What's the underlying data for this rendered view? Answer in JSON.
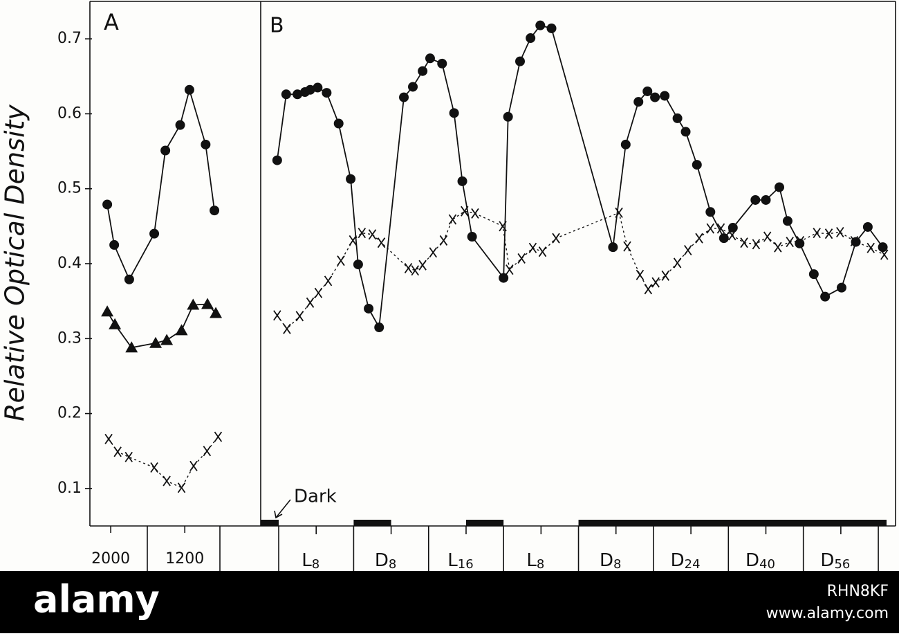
{
  "chart_data": [
    {
      "type": "line",
      "panel_label": "A",
      "ylabel": "Relative Optical Density",
      "ylim": [
        0.05,
        0.75
      ],
      "yticks": [
        0.1,
        0.2,
        0.3,
        0.4,
        0.5,
        0.6,
        0.7
      ],
      "xlim": [
        -4.5,
        32.4
      ],
      "xticks": [
        {
          "value": 0,
          "label": "2000"
        },
        {
          "value": 16,
          "label": "1200"
        }
      ],
      "series": [
        {
          "color": "#111111",
          "marker": "circle",
          "dashed": false,
          "x": [
            -0.75,
            0.75,
            4.0,
            9.4,
            11.8,
            15.0,
            17.0,
            20.5,
            22.4
          ],
          "values": [
            0.479,
            0.425,
            0.379,
            0.44,
            0.551,
            0.585,
            0.632,
            0.559,
            0.471
          ]
        },
        {
          "color": "#111111",
          "marker": "triangle",
          "dashed": false,
          "x": [
            -0.75,
            0.9,
            4.5,
            9.7,
            12.1,
            15.3,
            17.8,
            20.9,
            22.7
          ],
          "values": [
            0.336,
            0.319,
            0.288,
            0.294,
            0.298,
            0.311,
            0.345,
            0.346,
            0.334
          ]
        },
        {
          "color": "#111111",
          "marker": "x",
          "dashed": true,
          "x": [
            -0.45,
            1.5,
            3.9,
            9.4,
            12.1,
            15.3,
            17.9,
            20.8,
            23.2
          ],
          "values": [
            0.166,
            0.149,
            0.142,
            0.128,
            0.11,
            0.101,
            0.13,
            0.15,
            0.169
          ]
        }
      ]
    },
    {
      "type": "line",
      "panel_label": "B",
      "annotation": "Dark",
      "ylim": [
        0.05,
        0.75
      ],
      "xlim": [
        -0.24,
        8.23
      ],
      "categories": [
        {
          "main": "L",
          "sub": "8"
        },
        {
          "main": "D",
          "sub": "8"
        },
        {
          "main": "L",
          "sub": "16"
        },
        {
          "main": "L",
          "sub": "8"
        },
        {
          "main": "D",
          "sub": "8"
        },
        {
          "main": "D",
          "sub": "24"
        },
        {
          "main": "D",
          "sub": "40"
        },
        {
          "main": "D",
          "sub": "56"
        }
      ],
      "dark_periods": [
        [
          -0.24,
          0
        ],
        [
          1.0,
          1.5
        ],
        [
          2.5,
          3.0
        ],
        [
          4.0,
          8.11
        ]
      ],
      "series": [
        {
          "color": "#111111",
          "marker": "circle",
          "dashed": false,
          "x": [
            -0.02,
            0.1,
            0.25,
            0.35,
            0.42,
            0.52,
            0.64,
            0.8,
            0.96,
            1.06,
            1.2,
            1.34,
            1.67,
            1.79,
            1.92,
            2.02,
            2.18,
            2.34,
            2.45,
            2.58,
            3.0,
            3.06,
            3.22,
            3.36,
            3.49,
            3.64,
            4.46,
            4.63,
            4.8,
            4.92,
            5.02,
            5.15,
            5.32,
            5.43,
            5.58,
            5.76,
            5.94,
            6.06,
            6.36,
            6.5,
            6.68,
            6.79,
            6.95,
            7.14,
            7.29,
            7.51,
            7.7,
            7.86,
            8.06
          ],
          "values": [
            0.538,
            0.626,
            0.626,
            0.629,
            0.632,
            0.635,
            0.628,
            0.587,
            0.513,
            0.399,
            0.34,
            0.315,
            0.622,
            0.636,
            0.657,
            0.674,
            0.667,
            0.601,
            0.51,
            0.436,
            0.381,
            0.596,
            0.67,
            0.701,
            0.718,
            0.714,
            0.422,
            0.559,
            0.616,
            0.63,
            0.622,
            0.624,
            0.594,
            0.576,
            0.532,
            0.469,
            0.434,
            0.448,
            0.485,
            0.485,
            0.502,
            0.457,
            0.427,
            0.386,
            0.356,
            0.368,
            0.429,
            0.449,
            0.422
          ]
        },
        {
          "color": "#111111",
          "marker": "x",
          "dashed": true,
          "x": [
            -0.02,
            0.11,
            0.28,
            0.42,
            0.53,
            0.66,
            0.83,
            0.99,
            1.11,
            1.25,
            1.37,
            1.73,
            1.82,
            1.92,
            2.06,
            2.2,
            2.32,
            2.48,
            2.62,
            2.99,
            3.08,
            3.24,
            3.39,
            3.52,
            3.7,
            4.54,
            4.65,
            4.82,
            4.93,
            5.03,
            5.16,
            5.32,
            5.46,
            5.61,
            5.76,
            5.9,
            6.05,
            6.21,
            6.37,
            6.52,
            6.66,
            6.82,
            6.96,
            7.18,
            7.34,
            7.49,
            7.68,
            7.9,
            8.08
          ],
          "values": [
            0.331,
            0.313,
            0.33,
            0.348,
            0.361,
            0.377,
            0.404,
            0.431,
            0.441,
            0.439,
            0.428,
            0.394,
            0.391,
            0.398,
            0.415,
            0.431,
            0.459,
            0.47,
            0.467,
            0.45,
            0.392,
            0.407,
            0.421,
            0.416,
            0.434,
            0.468,
            0.423,
            0.385,
            0.366,
            0.375,
            0.384,
            0.401,
            0.418,
            0.434,
            0.447,
            0.447,
            0.438,
            0.428,
            0.426,
            0.436,
            0.422,
            0.429,
            0.43,
            0.441,
            0.44,
            0.442,
            0.43,
            0.421,
            0.412
          ]
        }
      ]
    }
  ],
  "watermark": {
    "logo": "alamy",
    "image_id": "RHN8KF",
    "site": "www.alamy.com"
  }
}
